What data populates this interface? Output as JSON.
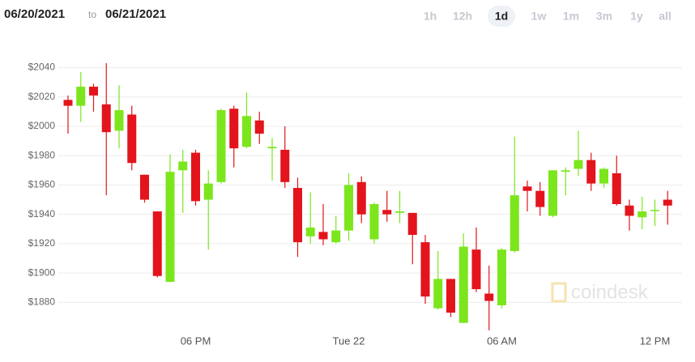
{
  "chart_data": {
    "type": "candlestick",
    "date_from": "06/20/2021",
    "date_separator": "to",
    "date_to": "06/21/2021",
    "range_options": [
      "1h",
      "12h",
      "1d",
      "1w",
      "1m",
      "3m",
      "1y",
      "all"
    ],
    "selected_range": 2,
    "watermark": "coindesk",
    "categories": [
      null,
      null,
      null,
      null,
      null,
      null,
      null,
      null,
      null,
      null,
      "06 PM",
      null,
      null,
      null,
      null,
      null,
      null,
      null,
      null,
      null,
      null,
      null,
      "Tue 22",
      null,
      null,
      null,
      null,
      null,
      null,
      null,
      null,
      null,
      null,
      null,
      "06 AM",
      null,
      null,
      null,
      null,
      null,
      null,
      null,
      null,
      null,
      null,
      null,
      "12 PM",
      null
    ],
    "open": [
      2018,
      2014,
      2027,
      2015,
      1997,
      2008,
      1967,
      1942,
      1894,
      1970,
      1982,
      1950,
      1962,
      2012,
      1986,
      2004,
      1985,
      1984,
      1958,
      1925,
      1928,
      1921,
      1929,
      1962,
      1923,
      1943,
      1941,
      1941,
      1921,
      1876,
      1896,
      1866,
      1916,
      1886,
      1878,
      1915,
      1959,
      1956,
      1939,
      1969,
      1971,
      1977,
      1961,
      1968,
      1946,
      1938,
      1943,
      1950
    ],
    "high": [
      2021,
      2037,
      2029,
      2043,
      2028,
      2014,
      1967,
      1942,
      1981,
      1984,
      1984,
      1970,
      2012,
      2014,
      2023,
      2010,
      1992,
      2000,
      1965,
      1955,
      1947,
      1939,
      1968,
      1966,
      1948,
      1956,
      1956,
      1941,
      1926,
      1915,
      1896,
      1927,
      1931,
      1905,
      1917,
      1993,
      1963,
      1962,
      1970,
      1972,
      1997,
      1982,
      1972,
      1980,
      1950,
      1952,
      1950,
      1956
    ],
    "low": [
      1995,
      2003,
      2010,
      1953,
      1985,
      1970,
      1948,
      1897,
      1894,
      1941,
      1946,
      1916,
      1961,
      1972,
      1985,
      1988,
      1963,
      1958,
      1911,
      1920,
      1919,
      1920,
      1922,
      1934,
      1920,
      1935,
      1934,
      1906,
      1879,
      1875,
      1870,
      1866,
      1887,
      1861,
      1876,
      1914,
      1942,
      1939,
      1938,
      1953,
      1966,
      1956,
      1958,
      1946,
      1929,
      1930,
      1932,
      1933
    ],
    "close": [
      2014,
      2027,
      2021,
      1996,
      2011,
      1975,
      1950,
      1898,
      1969,
      1976,
      1949,
      1961,
      2011,
      1985,
      2007,
      1995,
      1986,
      1962,
      1921,
      1931,
      1923,
      1929,
      1960,
      1940,
      1947,
      1940,
      1942,
      1926,
      1884,
      1896,
      1873,
      1918,
      1889,
      1881,
      1916,
      1953,
      1956,
      1945,
      1970,
      1970,
      1977,
      1961,
      1971,
      1947,
      1939,
      1942,
      1943,
      1946
    ],
    "up_color": "#7ce61c",
    "down_color": "#e3141c",
    "ylim": [
      1862,
      2048
    ],
    "yticks": [
      {
        "value": 1880,
        "label": "$1880"
      },
      {
        "value": 1900,
        "label": "$1900"
      },
      {
        "value": 1920,
        "label": "$1920"
      },
      {
        "value": 1940,
        "label": "$1940"
      },
      {
        "value": 1960,
        "label": "$1960"
      },
      {
        "value": 1980,
        "label": "$1980"
      },
      {
        "value": 2000,
        "label": "$2000"
      },
      {
        "value": 2020,
        "label": "$2020"
      },
      {
        "value": 2040,
        "label": "$2040"
      }
    ],
    "grid": true
  }
}
